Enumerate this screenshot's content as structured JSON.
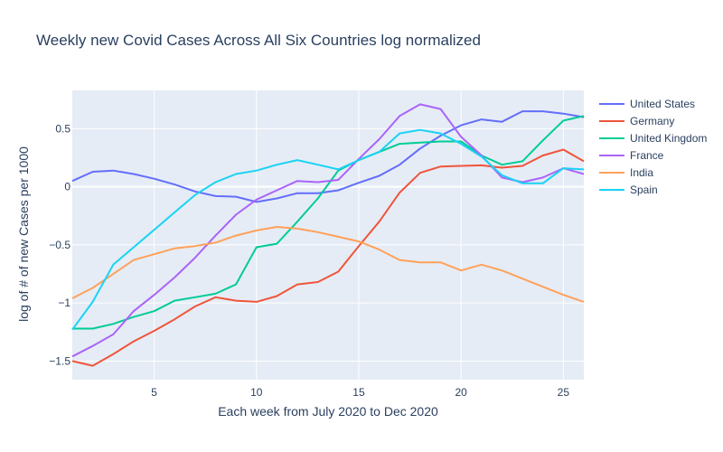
{
  "chart_data": {
    "type": "line",
    "title": "Weekly new Covid Cases Across All Six Countries log normalized",
    "xlabel": "Each week from July 2020 to Dec 2020",
    "ylabel": "log of # of new Cases per 1000",
    "xlim": [
      1,
      26
    ],
    "ylim": [
      -1.66,
      0.83
    ],
    "xticks": [
      5,
      10,
      15,
      20,
      25
    ],
    "yticks": [
      -1.5,
      -1,
      -0.5,
      0,
      0.5
    ],
    "ytick_labels": [
      "−1.5",
      "−1",
      "−0.5",
      "0",
      "0.5"
    ],
    "grid": true,
    "legend_position": "right",
    "x": [
      1,
      2,
      3,
      4,
      5,
      6,
      7,
      8,
      9,
      10,
      11,
      12,
      13,
      14,
      15,
      16,
      17,
      18,
      19,
      20,
      21,
      22,
      23,
      24,
      25,
      26
    ],
    "series": [
      {
        "name": "United States",
        "color": "#636efa",
        "values": [
          0.05,
          0.13,
          0.14,
          0.11,
          0.07,
          0.02,
          -0.04,
          -0.08,
          -0.085,
          -0.13,
          -0.1,
          -0.055,
          -0.055,
          -0.03,
          0.035,
          0.095,
          0.19,
          0.33,
          0.44,
          0.53,
          0.58,
          0.56,
          0.65,
          0.65,
          0.63,
          0.6
        ]
      },
      {
        "name": "Germany",
        "color": "#EF553B",
        "values": [
          -1.5,
          -1.54,
          -1.44,
          -1.33,
          -1.24,
          -1.14,
          -1.03,
          -0.95,
          -0.98,
          -0.99,
          -0.94,
          -0.84,
          -0.82,
          -0.73,
          -0.51,
          -0.3,
          -0.05,
          0.12,
          0.175,
          0.18,
          0.185,
          0.165,
          0.18,
          0.27,
          0.32,
          0.22
        ]
      },
      {
        "name": "United Kingdom",
        "color": "#00cc96",
        "values": [
          -1.22,
          -1.22,
          -1.18,
          -1.12,
          -1.07,
          -0.98,
          -0.95,
          -0.92,
          -0.84,
          -0.52,
          -0.49,
          -0.3,
          -0.1,
          0.14,
          0.23,
          0.3,
          0.37,
          0.38,
          0.39,
          0.39,
          0.27,
          0.19,
          0.22,
          0.4,
          0.57,
          0.61
        ]
      },
      {
        "name": "France",
        "color": "#ab63fa",
        "values": [
          -1.46,
          -1.37,
          -1.27,
          -1.07,
          -0.93,
          -0.78,
          -0.61,
          -0.42,
          -0.24,
          -0.11,
          -0.03,
          0.05,
          0.04,
          0.06,
          0.24,
          0.41,
          0.61,
          0.71,
          0.67,
          0.43,
          0.27,
          0.08,
          0.04,
          0.08,
          0.16,
          0.11
        ]
      },
      {
        "name": "India",
        "color": "#FFA15A",
        "values": [
          -0.96,
          -0.87,
          -0.75,
          -0.63,
          -0.58,
          -0.53,
          -0.51,
          -0.48,
          -0.42,
          -0.375,
          -0.345,
          -0.36,
          -0.39,
          -0.43,
          -0.47,
          -0.54,
          -0.63,
          -0.65,
          -0.65,
          -0.72,
          -0.67,
          -0.72,
          -0.79,
          -0.86,
          -0.93,
          -0.99
        ]
      },
      {
        "name": "Spain",
        "color": "#19d3f3",
        "values": [
          -1.23,
          -0.99,
          -0.67,
          -0.52,
          -0.37,
          -0.22,
          -0.07,
          0.04,
          0.11,
          0.14,
          0.19,
          0.23,
          0.19,
          0.15,
          0.23,
          0.3,
          0.46,
          0.49,
          0.46,
          0.37,
          0.26,
          0.1,
          0.03,
          0.03,
          0.16,
          0.15
        ]
      }
    ]
  }
}
